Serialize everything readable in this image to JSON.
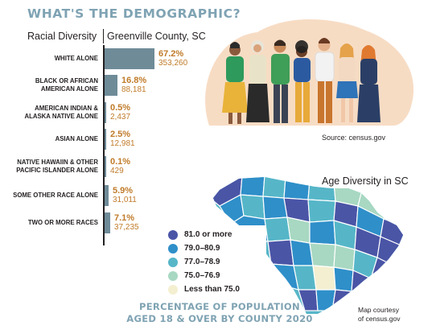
{
  "header": {
    "title": "WHAT'S THE DEMOGRAPHIC?"
  },
  "left_column_header": "Racial Diversity",
  "right_column_header": "Greenville County, SC",
  "chart_data": [
    {
      "type": "bar",
      "orientation": "horizontal",
      "title": "WHAT'S THE DEMOGRAPHIC?",
      "categories": [
        "WHITE ALONE",
        "BLACK OR AFRICAN AMERICAN ALONE",
        "AMERICAN INDIAN & ALASKA NATIVE ALONE",
        "ASIAN ALONE",
        "NATIVE HAWAIIN & OTHER PACIFIC ISLANDER ALONE",
        "SOME OTHER RACE ALONE",
        "TWO OR MORE RACES"
      ],
      "category_lines": [
        [
          "WHITE ALONE"
        ],
        [
          "BLACK OR AFRICAN",
          "AMERICAN ALONE"
        ],
        [
          "AMERICAN INDIAN &",
          "ALASKA NATIVE ALONE"
        ],
        [
          "ASIAN ALONE"
        ],
        [
          "NATIVE HAWAIIN & OTHER",
          "PACIFIC ISLANDER ALONE"
        ],
        [
          "SOME OTHER RACE ALONE"
        ],
        [
          "TWO OR MORE RACES"
        ]
      ],
      "values": [
        67.2,
        16.8,
        0.5,
        2.5,
        0.1,
        5.9,
        7.1
      ],
      "value_labels": [
        "67.2%",
        "16.8%",
        "0.5%",
        "2.5%",
        "0.1%",
        "5.9%",
        "7.1%"
      ],
      "counts": [
        "353,260",
        "88,181",
        "2,437",
        "12,981",
        "429",
        "31,011",
        "37,235"
      ],
      "bar_color": "#6f8b98",
      "label_color": "#c07b2a",
      "xlim": [
        0,
        67.2
      ],
      "grid": false
    },
    {
      "type": "choropleth",
      "title": "Age Diversity in SC",
      "region": "South Carolina counties",
      "measure": "PERCENTAGE OF POPULATION AGED 18 & OVER BY COUNTY 2020",
      "legend": [
        {
          "label": "81.0 or more",
          "color": "#4a55a6"
        },
        {
          "label": "79.0–80.9",
          "color": "#2f8fc9"
        },
        {
          "label": "77.0–78.9",
          "color": "#56b6c8"
        },
        {
          "label": "75.0–76.9",
          "color": "#a8d8c2"
        },
        {
          "label": "Less than 75.0",
          "color": "#f4efd0"
        }
      ],
      "legend_placement": "left"
    }
  ],
  "illustration": {
    "source": "Source: census.gov"
  },
  "map": {
    "title": "Age Diversity in SC",
    "caption_line1": "PERCENTAGE OF POPULATION",
    "caption_line2": "AGED 18 & OVER BY COUNTY 2020",
    "courtesy_line1": "Map courtesy",
    "courtesy_line2": "of census.gov"
  }
}
